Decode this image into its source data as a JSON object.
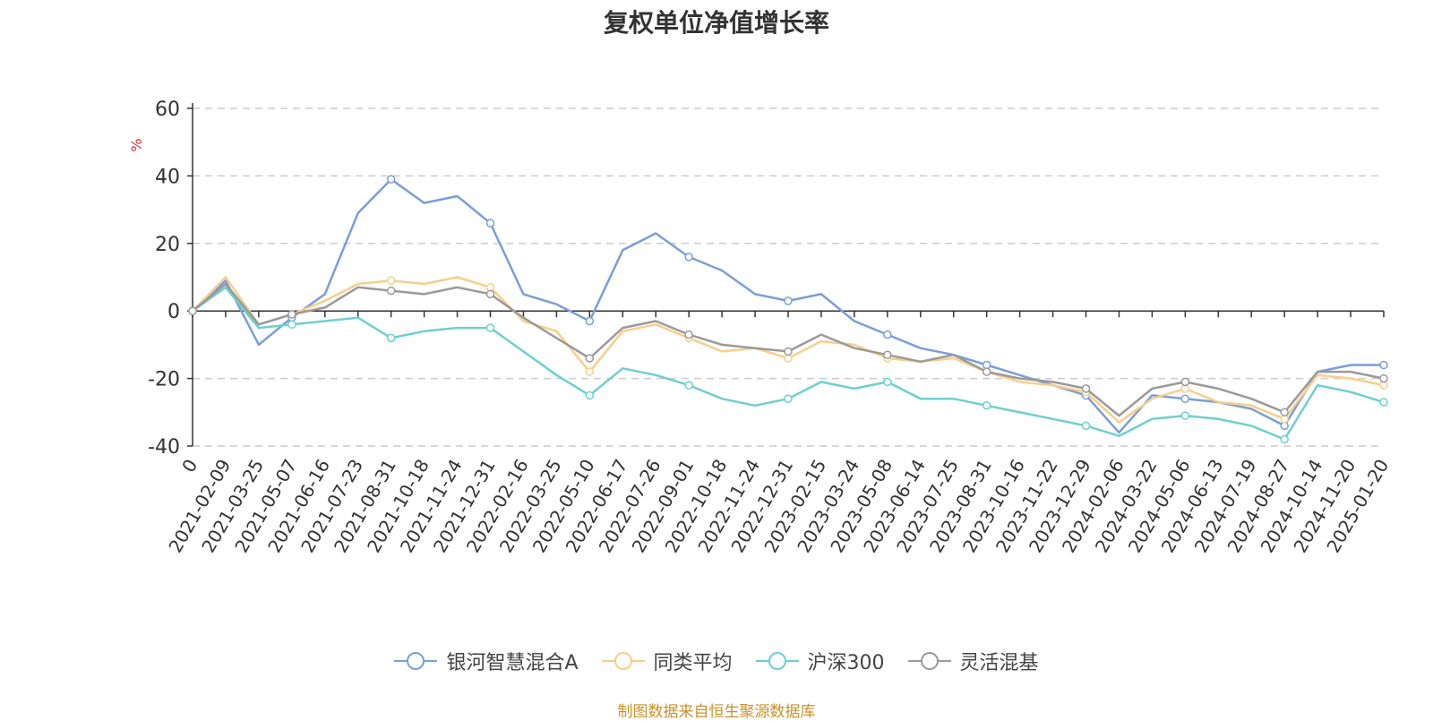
{
  "chart_data": {
    "type": "line",
    "title": "复权单位净值增长率",
    "ylabel": "%",
    "ylim": [
      -40,
      60
    ],
    "yticks": [
      "60",
      "40",
      "20",
      "0",
      "-20",
      "-40"
    ],
    "categories": [
      "0",
      "2021-02-09",
      "2021-03-25",
      "2021-05-07",
      "2021-06-16",
      "2021-07-23",
      "2021-08-31",
      "2021-10-18",
      "2021-11-24",
      "2021-12-31",
      "2022-02-16",
      "2022-03-25",
      "2022-05-10",
      "2022-06-17",
      "2022-07-26",
      "2022-09-01",
      "2022-10-18",
      "2022-11-24",
      "2022-12-31",
      "2023-02-15",
      "2023-03-24",
      "2023-05-08",
      "2023-06-14",
      "2023-07-25",
      "2023-08-31",
      "2023-10-16",
      "2023-11-22",
      "2023-12-29",
      "2024-02-06",
      "2024-03-22",
      "2024-05-06",
      "2024-06-13",
      "2024-07-19",
      "2024-08-27",
      "2024-10-14",
      "2024-11-20",
      "2025-01-20"
    ],
    "grid": true,
    "legend_position": "bottom",
    "series": [
      {
        "name": "银河智慧混合A",
        "color": "#7b9ed6",
        "values": [
          0,
          9,
          -10,
          -2,
          5,
          29,
          39,
          32,
          34,
          26,
          5,
          2,
          -3,
          18,
          23,
          16,
          12,
          5,
          3,
          5,
          -3,
          -7,
          -11,
          -13,
          -16,
          -19,
          -22,
          -25,
          -36,
          -25,
          -26,
          -27,
          -29,
          -34,
          -18,
          -16,
          -16
        ]
      },
      {
        "name": "同类平均",
        "color": "#f7cf8a",
        "values": [
          0,
          10,
          -4,
          -1,
          3,
          8,
          9,
          8,
          10,
          7,
          -3,
          -6,
          -18,
          -6,
          -4,
          -8,
          -12,
          -11,
          -14,
          -9,
          -10,
          -14,
          -15,
          -14,
          -18,
          -21,
          -22,
          -24,
          -33,
          -26,
          -23,
          -27,
          -28,
          -32,
          -19,
          -20,
          -22
        ]
      },
      {
        "name": "沪深300",
        "color": "#6fcfcf",
        "values": [
          0,
          7,
          -5,
          -4,
          -3,
          -2,
          -8,
          -6,
          -5,
          -5,
          -12,
          -19,
          -25,
          -17,
          -19,
          -22,
          -26,
          -28,
          -26,
          -21,
          -23,
          -21,
          -26,
          -26,
          -28,
          -30,
          -32,
          -34,
          -37,
          -32,
          -31,
          -32,
          -34,
          -38,
          -22,
          -24,
          -27
        ]
      },
      {
        "name": "灵活混基",
        "color": "#9a9a9a",
        "values": [
          0,
          8,
          -4,
          -1,
          1,
          7,
          6,
          5,
          7,
          5,
          -2,
          -8,
          -14,
          -5,
          -3,
          -7,
          -10,
          -11,
          -12,
          -7,
          -11,
          -13,
          -15,
          -13,
          -18,
          -20,
          -21,
          -23,
          -31,
          -23,
          -21,
          -23,
          -26,
          -30,
          -18,
          -18,
          -20
        ]
      }
    ]
  },
  "source_note": "制图数据来自恒生聚源数据库"
}
